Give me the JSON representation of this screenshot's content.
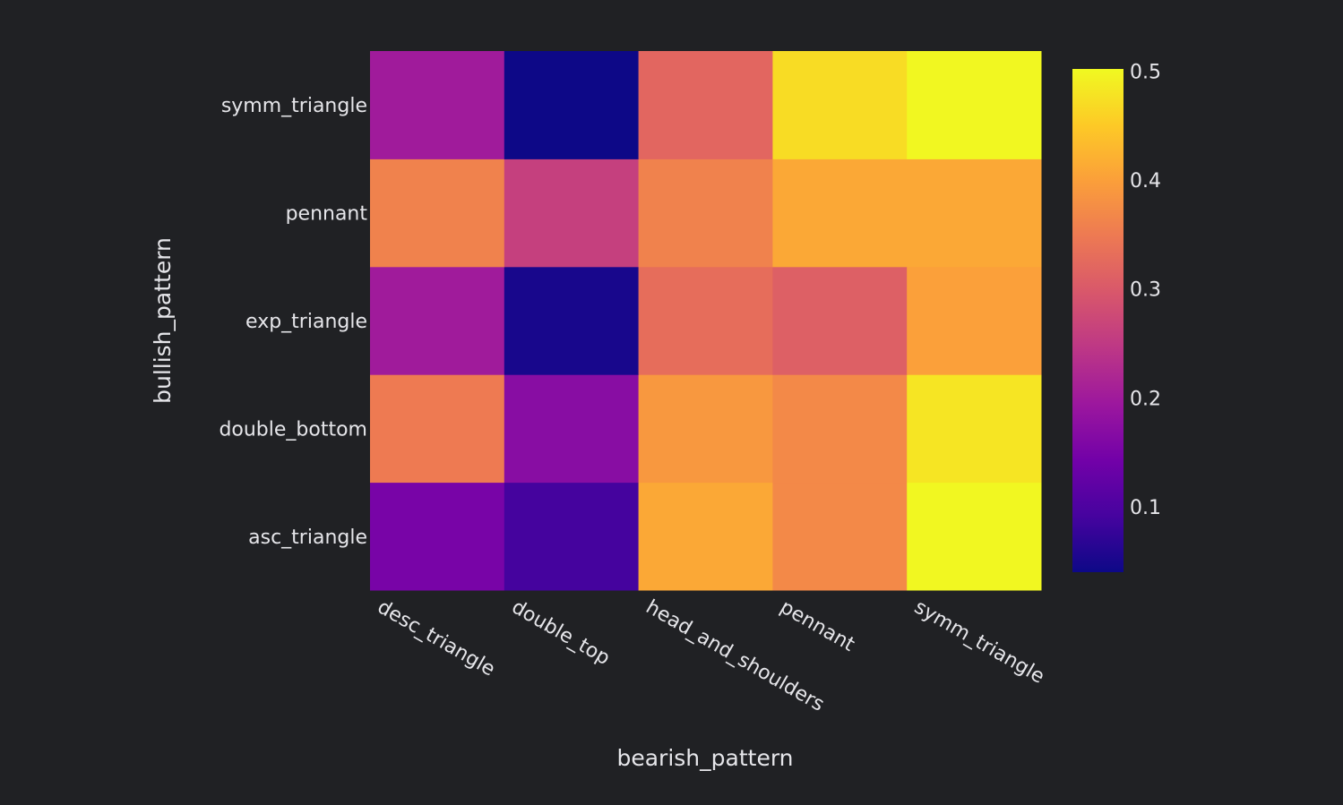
{
  "chart_data": {
    "type": "heatmap",
    "title": "",
    "xlabel": "bearish_pattern",
    "ylabel": "bullish_pattern",
    "x": [
      "desc_triangle",
      "double_top",
      "head_and_shoulders",
      "pennant",
      "symm_triangle"
    ],
    "y": [
      "asc_triangle",
      "double_bottom",
      "exp_triangle",
      "pennant",
      "symm_triangle"
    ],
    "z": [
      [
        0.15,
        0.09,
        0.41,
        0.37,
        0.5
      ],
      [
        0.35,
        0.17,
        0.39,
        0.37,
        0.48
      ],
      [
        0.2,
        0.05,
        0.33,
        0.31,
        0.4
      ],
      [
        0.36,
        0.26,
        0.36,
        0.41,
        0.41
      ],
      [
        0.2,
        0.04,
        0.32,
        0.47,
        0.5
      ]
    ],
    "colorscale": "plasma",
    "zrange": [
      0.04,
      0.502
    ],
    "colorbar_ticks": [
      "0.1",
      "0.2",
      "0.3",
      "0.4",
      "0.5"
    ],
    "colorbar_tick_values": [
      0.1,
      0.2,
      0.3,
      0.4,
      0.5
    ],
    "background_color": "#202124"
  }
}
